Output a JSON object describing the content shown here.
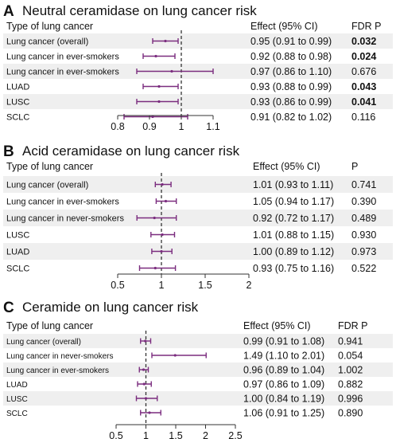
{
  "colors": {
    "ci": "#7b2d7f",
    "stripe": "#efefef",
    "axis": "#333333",
    "ref": "#333333"
  },
  "chart_data": [
    {
      "type": "forest",
      "panel_letter": "A",
      "title": "Neutral ceramidase on lung cancer risk",
      "headers": {
        "label": "Type of lung cancer",
        "effect": "Effect (95% CI)",
        "p": "FDR P"
      },
      "rows": [
        {
          "label": "Lung cancer (overall)",
          "est": 0.95,
          "lo": 0.91,
          "hi": 0.99,
          "effect_text": "0.95 (0.91 to 0.99)",
          "p_text": "0.032",
          "p_bold": true
        },
        {
          "label": "Lung cancer in ever-smokers",
          "est": 0.92,
          "lo": 0.88,
          "hi": 0.98,
          "effect_text": "0.92 (0.88 to 0.98)",
          "p_text": "0.024",
          "p_bold": true
        },
        {
          "label": "Lung cancer in ever-smokers",
          "est": 0.97,
          "lo": 0.86,
          "hi": 1.1,
          "effect_text": "0.97 (0.86 to 1.10)",
          "p_text": "0.676",
          "p_bold": false
        },
        {
          "label": "LUAD",
          "est": 0.93,
          "lo": 0.88,
          "hi": 0.99,
          "effect_text": "0.93 (0.88 to 0.99)",
          "p_text": "0.043",
          "p_bold": true
        },
        {
          "label": "LUSC",
          "est": 0.93,
          "lo": 0.86,
          "hi": 0.99,
          "effect_text": "0.93 (0.86 to 0.99)",
          "p_text": "0.041",
          "p_bold": true
        },
        {
          "label": "SCLC",
          "est": 0.91,
          "lo": 0.82,
          "hi": 1.02,
          "effect_text": "0.91 (0.82 to 1.02)",
          "p_text": "0.116",
          "p_bold": false
        }
      ],
      "x_ticks": [
        0.8,
        0.9,
        1,
        1.1
      ],
      "x_tick_labels": [
        "0.8",
        "0.9",
        "1",
        "1.1"
      ],
      "xlim": [
        0.8,
        1.1
      ],
      "ref_line": 1
    },
    {
      "type": "forest",
      "panel_letter": "B",
      "title": "Acid ceramidase on lung cancer risk",
      "headers": {
        "label": "Type of lung cancer",
        "effect": "Effect (95% CI)",
        "p": "P"
      },
      "rows": [
        {
          "label": "Lung cancer (overall)",
          "est": 1.01,
          "lo": 0.93,
          "hi": 1.11,
          "effect_text": "1.01 (0.93 to 1.11)",
          "p_text": "0.741",
          "p_bold": false
        },
        {
          "label": "Lung cancer in ever-smokers",
          "est": 1.05,
          "lo": 0.94,
          "hi": 1.17,
          "effect_text": "1.05 (0.94 to 1.17)",
          "p_text": "0.390",
          "p_bold": false
        },
        {
          "label": "Lung cancer in never-smokers",
          "est": 0.92,
          "lo": 0.72,
          "hi": 1.17,
          "effect_text": "0.92 (0.72 to 1.17)",
          "p_text": "0.489",
          "p_bold": false
        },
        {
          "label": "LUSC",
          "est": 1.01,
          "lo": 0.88,
          "hi": 1.15,
          "effect_text": "1.01 (0.88 to 1.15)",
          "p_text": "0.930",
          "p_bold": false
        },
        {
          "label": "LUAD",
          "est": 1.0,
          "lo": 0.89,
          "hi": 1.12,
          "effect_text": "1.00 (0.89 to 1.12)",
          "p_text": "0.973",
          "p_bold": false
        },
        {
          "label": "SCLC",
          "est": 0.93,
          "lo": 0.75,
          "hi": 1.16,
          "effect_text": "0.93 (0.75 to 1.16)",
          "p_text": "0.522",
          "p_bold": false
        }
      ],
      "x_ticks": [
        0.5,
        1,
        1.5,
        2
      ],
      "x_tick_labels": [
        "0.5",
        "1",
        "1.5",
        "2"
      ],
      "xlim": [
        0.5,
        2
      ],
      "ref_line": 1
    },
    {
      "type": "forest",
      "panel_letter": "C",
      "title": "Ceramide on lung cancer risk",
      "headers": {
        "label": "Type of lung cancer",
        "effect": "Effect (95% CI)",
        "p": "FDR P"
      },
      "rows": [
        {
          "label": "Lung cancer (overall)",
          "est": 0.99,
          "lo": 0.91,
          "hi": 1.08,
          "effect_text": "0.99 (0.91 to 1.08)",
          "p_text": "0.941",
          "p_bold": false
        },
        {
          "label": "Lung cancer in never-smokers",
          "est": 1.49,
          "lo": 1.1,
          "hi": 2.01,
          "effect_text": "1.49 (1.10 to 2.01)",
          "p_text": "0.054",
          "p_bold": false
        },
        {
          "label": "Lung cancer in ever-smokers",
          "est": 0.96,
          "lo": 0.89,
          "hi": 1.04,
          "effect_text": "0.96 (0.89 to 1.04)",
          "p_text": "1.002",
          "p_bold": false
        },
        {
          "label": "LUAD",
          "est": 0.97,
          "lo": 0.86,
          "hi": 1.09,
          "effect_text": "0.97 (0.86 to 1.09)",
          "p_text": "0.882",
          "p_bold": false
        },
        {
          "label": "LUSC",
          "est": 1.0,
          "lo": 0.84,
          "hi": 1.19,
          "effect_text": "1.00 (0.84 to 1.19)",
          "p_text": "0.996",
          "p_bold": false
        },
        {
          "label": "SCLC",
          "est": 1.06,
          "lo": 0.91,
          "hi": 1.25,
          "effect_text": "1.06 (0.91 to 1.25)",
          "p_text": "0.890",
          "p_bold": false
        }
      ],
      "x_ticks": [
        0.5,
        1,
        1.5,
        2,
        2.5
      ],
      "x_tick_labels": [
        "0.5",
        "1",
        "1.5",
        "2",
        "2.5"
      ],
      "xlim": [
        0.5,
        2.5
      ],
      "ref_line": 1
    }
  ]
}
